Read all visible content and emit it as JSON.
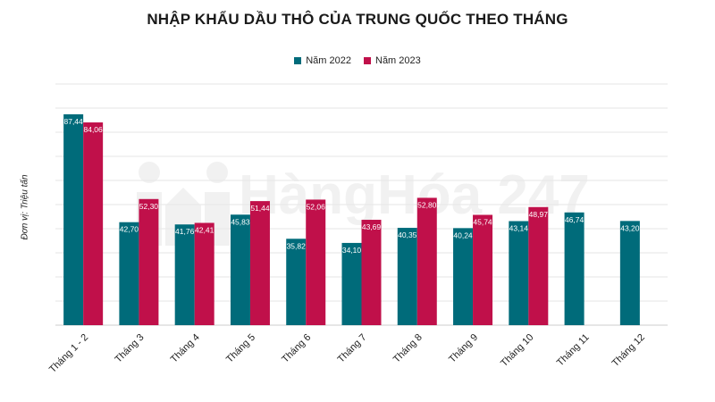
{
  "watermark_text": "HàngHóa 247",
  "chart_data": {
    "type": "bar",
    "title": "NHẬP KHẨU DẦU THÔ CỦA TRUNG QUỐC THEO THÁNG",
    "ylabel": "Đơn vị: Triệu tấn",
    "xlabel": "",
    "ylim": [
      0,
      100
    ],
    "grid": true,
    "legend_position": "top-center",
    "categories": [
      "Tháng 1 - 2",
      "Tháng 3",
      "Tháng 4",
      "Tháng 5",
      "Tháng 6",
      "Tháng 7",
      "Tháng 8",
      "Tháng 9",
      "Tháng 10",
      "Tháng 11",
      "Tháng 12"
    ],
    "series": [
      {
        "name": "Năm 2022",
        "color": "#006B7A",
        "values": [
          87.44,
          42.7,
          41.76,
          45.83,
          35.82,
          34.1,
          40.35,
          40.24,
          43.14,
          46.74,
          43.2
        ],
        "labels": [
          "87,44",
          "42,70",
          "41,76",
          "45,83",
          "35,82",
          "34,10",
          "40,35",
          "40,24",
          "43,14",
          "46,74",
          "43,20"
        ]
      },
      {
        "name": "Năm 2023",
        "color": "#C0104A",
        "values": [
          84.06,
          52.3,
          42.41,
          51.44,
          52.06,
          43.69,
          52.8,
          45.74,
          48.97,
          null,
          null
        ],
        "labels": [
          "84,06",
          "52,30",
          "42,41",
          "51,44",
          "52,06",
          "43,69",
          "52,80",
          "45,74",
          "48,97",
          null,
          null
        ]
      }
    ]
  }
}
